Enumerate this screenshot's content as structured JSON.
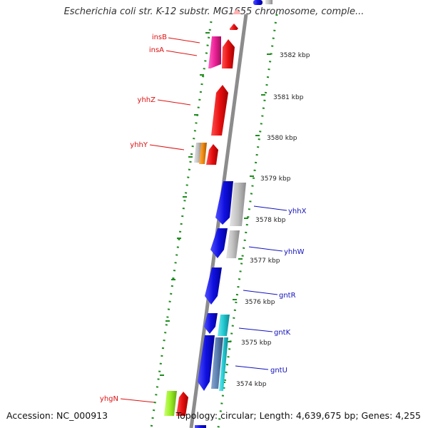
{
  "title": "Escherichia coli str. K-12 substr. MG1655 chromosome, comple...",
  "footer": {
    "accession": "Accession: NC_000913",
    "stats": "Topology: circular; Length: 4,639,675 bp; Genes: 4,255"
  },
  "colors": {
    "backbone": "#8c8c8c",
    "forward_label": "#dd1111",
    "reverse_label": "#1111bb",
    "tick_dots": "#1e8c1e",
    "kbp_text": "#222222"
  },
  "kbp_labels": [
    "3582 kbp",
    "3581 kbp",
    "3580 kbp",
    "3579 kbp",
    "3578 kbp",
    "3577 kbp",
    "3576 kbp",
    "3575 kbp",
    "3574 kbp"
  ],
  "genes_forward": [
    {
      "name": "insB",
      "color": "#ee2299"
    },
    {
      "name": "insA",
      "color": "#e81010"
    },
    {
      "name": "yhhZ",
      "color": "#e81010"
    },
    {
      "name": "yhhY",
      "color": "#e81010"
    },
    {
      "name": "yhgN",
      "color": "#e81010"
    }
  ],
  "genes_reverse": [
    {
      "name": "yhhX",
      "color": "#1010e0"
    },
    {
      "name": "yhhW",
      "color": "#1010e0"
    },
    {
      "name": "gntR",
      "color": "#1010e0"
    },
    {
      "name": "gntK",
      "color": "#1010e0"
    },
    {
      "name": "gntU",
      "color": "#1010e0"
    }
  ],
  "feature_colors": {
    "forward_cds": "#e81010",
    "insertion_element": "#ee2299",
    "reverse_cds": "#1010e0",
    "orf_grey": "#c0c0c0",
    "orange_feature": "#f08a10",
    "cyan_feature": "#20c8d0",
    "steel_feature": "#5a7fb0",
    "lime_feature": "#99ee22"
  }
}
